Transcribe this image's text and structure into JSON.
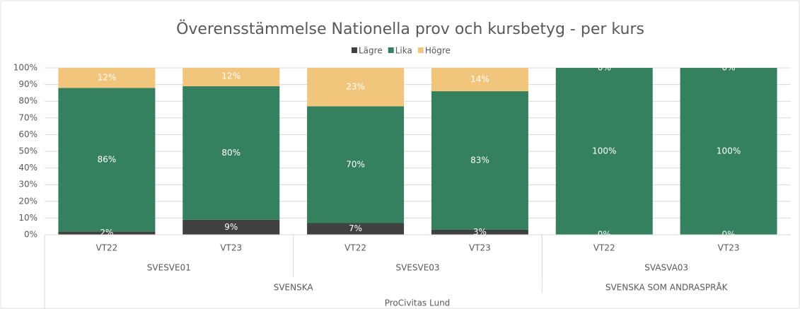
{
  "chart_data": {
    "type": "stacked_bar",
    "title": "Överensstämmelse Nationella prov och kursbetyg - per kurs",
    "x_label": "ProCivitas Lund",
    "groups": [
      {
        "name": "SVENSKA",
        "subgroups": [
          {
            "name": "SVESVE01",
            "categories": [
              "VT22",
              "VT23"
            ]
          },
          {
            "name": "SVESVE03",
            "categories": [
              "VT22",
              "VT23"
            ]
          }
        ]
      },
      {
        "name": "SVENSKA SOM ANDRASPRÅK",
        "subgroups": [
          {
            "name": "SVASVA03",
            "categories": [
              "VT22",
              "VT23"
            ]
          }
        ]
      }
    ],
    "series": [
      {
        "name": "Lägre",
        "color": "#404040",
        "values": [
          2,
          9,
          7,
          3,
          0,
          0
        ],
        "value_labels": [
          "2%",
          "9%",
          "7%",
          "3%",
          "0%",
          "0%"
        ]
      },
      {
        "name": "Lika",
        "color": "#35805f",
        "values": [
          86,
          80,
          70,
          83,
          100,
          100
        ],
        "value_labels": [
          "86%",
          "80%",
          "70%",
          "83%",
          "100%",
          "100%"
        ]
      },
      {
        "name": "Högre",
        "color": "#f2c57c",
        "values": [
          12,
          12,
          23,
          14,
          0,
          0
        ],
        "value_labels": [
          "12%",
          "12%",
          "23%",
          "14%",
          "0%",
          "0%"
        ]
      }
    ],
    "ylim": [
      0,
      100
    ],
    "yticks": [
      {
        "value": 0,
        "label": "0%"
      },
      {
        "value": 10,
        "label": "10%"
      },
      {
        "value": 20,
        "label": "20%"
      },
      {
        "value": 30,
        "label": "30%"
      },
      {
        "value": 40,
        "label": "40%"
      },
      {
        "value": 50,
        "label": "50%"
      },
      {
        "value": 60,
        "label": "60%"
      },
      {
        "value": 70,
        "label": "70%"
      },
      {
        "value": 80,
        "label": "80%"
      },
      {
        "value": 90,
        "label": "90%"
      },
      {
        "value": 100,
        "label": "100%"
      }
    ],
    "grid": true,
    "legend": "top"
  }
}
